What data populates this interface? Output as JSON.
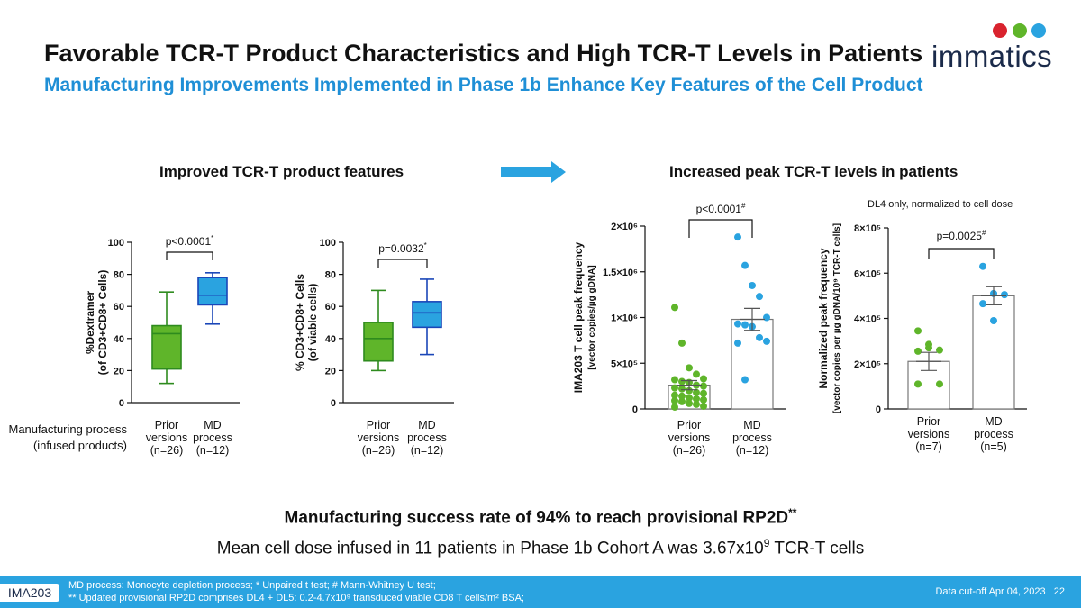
{
  "title": "Favorable TCR-T Product Characteristics and High TCR-T Levels in Patients",
  "subtitle": "Manufacturing Improvements Implemented in Phase 1b Enhance Key Features of the Cell Product",
  "logo_text": "immatics",
  "left_section_title": "Improved TCR-T product features",
  "right_section_title": "Increased peak TCR-T levels in patients",
  "right_note": "DL4 only, normalized to cell dose",
  "manufacturing_label": [
    "Manufacturing process",
    "(infused products)"
  ],
  "colors": {
    "green": "#5fb52a",
    "green_dark": "#2e8b1e",
    "blue": "#2aa3e0",
    "blue_dark": "#1a46b8"
  },
  "chart_data": [
    {
      "type": "box",
      "ylabel_lines": [
        "%Dextramer",
        "(of CD3+CD8+ Cells)"
      ],
      "ylim": [
        0,
        100
      ],
      "yticks": [
        "0",
        "20",
        "40",
        "60",
        "80",
        "100"
      ],
      "pvalue": "p<0.0001",
      "pvalue_mark": "*",
      "categories": [
        [
          "Prior",
          "versions",
          "(n=26)"
        ],
        [
          "MD",
          "process",
          "(n=12)"
        ]
      ],
      "boxes": [
        {
          "min": 12,
          "q1": 21,
          "median": 43,
          "q3": 48,
          "max": 69
        },
        {
          "min": 49,
          "q1": 61,
          "median": 67,
          "q3": 78,
          "max": 81
        }
      ]
    },
    {
      "type": "box",
      "ylabel_lines": [
        "% CD3+CD8+ Cells",
        "(of viable cells)"
      ],
      "ylim": [
        0,
        100
      ],
      "yticks": [
        "0",
        "20",
        "40",
        "60",
        "80",
        "100"
      ],
      "pvalue": "p=0.0032",
      "pvalue_mark": "*",
      "categories": [
        [
          "Prior",
          "versions",
          "(n=26)"
        ],
        [
          "MD",
          "process",
          "(n=12)"
        ]
      ],
      "boxes": [
        {
          "min": 20,
          "q1": 26,
          "median": 40,
          "q3": 50,
          "max": 70
        },
        {
          "min": 30,
          "q1": 47,
          "median": 56,
          "q3": 63,
          "max": 77
        }
      ]
    },
    {
      "type": "bar_scatter",
      "ylabel_lines": [
        "IMA203 T cell peak frequency",
        "[vector copies/µg gDNA]"
      ],
      "ylim": [
        0,
        2000000
      ],
      "yticks": [
        "0",
        "5×10⁵",
        "1×10⁶",
        "1.5×10⁶",
        "2×10⁶"
      ],
      "pvalue": "p<0.0001",
      "pvalue_mark": "#",
      "categories": [
        [
          "Prior",
          "versions",
          "(n=26)"
        ],
        [
          "MD",
          "process",
          "(n=12)"
        ]
      ],
      "bars": [
        {
          "mean": 260000,
          "sem": 50000
        },
        {
          "mean": 980000,
          "sem": 120000
        }
      ],
      "points": [
        [
          1110000,
          720000,
          450000,
          380000,
          330000,
          320000,
          300000,
          290000,
          260000,
          250000,
          230000,
          220000,
          200000,
          180000,
          170000,
          150000,
          140000,
          120000,
          110000,
          100000,
          90000,
          80000,
          60000,
          50000,
          30000,
          20000
        ],
        [
          1880000,
          1570000,
          1350000,
          1230000,
          1000000,
          930000,
          920000,
          900000,
          780000,
          740000,
          720000,
          320000
        ]
      ]
    },
    {
      "type": "bar_scatter",
      "ylabel_lines": [
        "Normalized peak frequency",
        "[vector copies per µg gDNA/10⁹ TCR-T cells]"
      ],
      "ylim": [
        0,
        800000
      ],
      "yticks": [
        "0",
        "2×10⁵",
        "4×10⁵",
        "6×10⁵",
        "8×10⁵"
      ],
      "pvalue": "p=0.0025",
      "pvalue_mark": "#",
      "categories": [
        [
          "Prior",
          "versions",
          "(n=7)"
        ],
        [
          "MD",
          "process",
          "(n=5)"
        ]
      ],
      "bars": [
        {
          "mean": 210000,
          "sem": 40000
        },
        {
          "mean": 500000,
          "sem": 40000
        }
      ],
      "points": [
        [
          345000,
          285000,
          260000,
          255000,
          270000,
          110000,
          110000
        ],
        [
          630000,
          510000,
          505000,
          465000,
          390000
        ]
      ]
    }
  ],
  "success_text": "Manufacturing success rate of 94% to reach provisional RP2D",
  "success_sup": "**",
  "mean_text_before": "Mean cell dose infused in 11 patients in Phase 1b Cohort A was 3.67x10",
  "mean_sup": "9",
  "mean_text_after": " TCR-T cells",
  "footer": {
    "tag": "IMA203",
    "line1": "MD process: Monocyte depletion process; * Unpaired t test; # Mann-Whitney U test;",
    "line2": "** Updated provisional RP2D comprises DL4 + DL5: 0.2-4.7x10⁹ transduced viable CD8 T cells/m² BSA;",
    "cutoff": "Data cut-off Apr 04, 2023",
    "page": "22"
  }
}
